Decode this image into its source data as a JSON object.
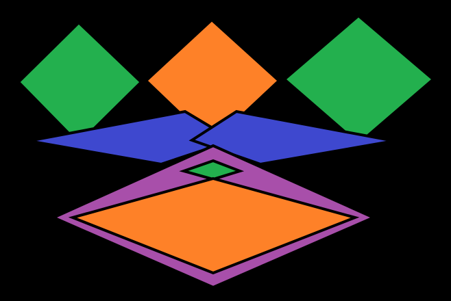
{
  "canvas": {
    "background": "#000000"
  },
  "palette": {
    "green": "#23B04E",
    "orange": "#FE8128",
    "blue": "#3E48CF",
    "purple": "#A84FAA",
    "outline": "#000000"
  },
  "shapes": [
    {
      "name": "green-diamond-left",
      "color": "green"
    },
    {
      "name": "orange-diamond-top",
      "color": "orange"
    },
    {
      "name": "green-diamond-right",
      "color": "green"
    },
    {
      "name": "blue-rhombus-left",
      "color": "blue"
    },
    {
      "name": "blue-rhombus-right",
      "color": "blue"
    },
    {
      "name": "small-green-diamond",
      "color": "green"
    },
    {
      "name": "purple-outer-diamond",
      "color": "purple"
    },
    {
      "name": "orange-inner-diamond",
      "color": "orange"
    }
  ]
}
